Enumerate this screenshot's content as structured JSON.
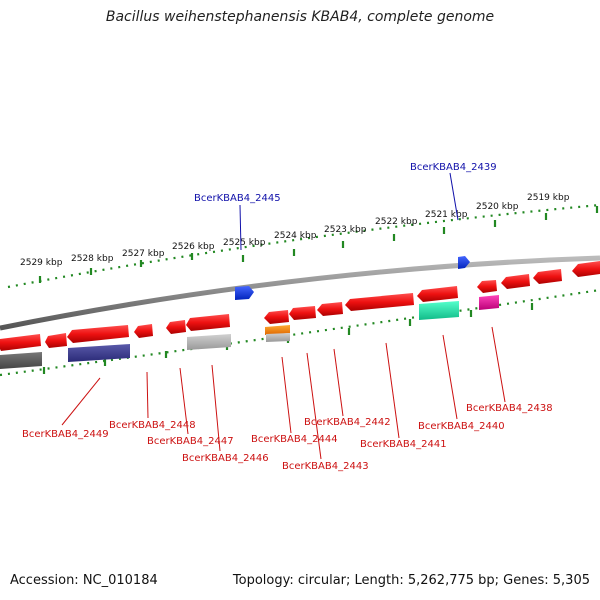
{
  "title": "Bacillus weihenstephanensis KBAB4, complete genome",
  "footer": {
    "accession": "Accession: NC_010184",
    "topology": "Topology: circular; Length: 5,262,775 bp; Genes: 5,305"
  },
  "kbp_labels": [
    "2529 kbp",
    "2528 kbp",
    "2527 kbp",
    "2526 kbp",
    "2525 kbp",
    "2524 kbp",
    "2523 kbp",
    "2522 kbp",
    "2521 kbp",
    "2520 kbp",
    "2519 kbp"
  ],
  "gene_labels": {
    "g2445": "BcerKBAB4_2445",
    "g2439": "BcerKBAB4_2439",
    "g2449": "BcerKBAB4_2449",
    "g2448": "BcerKBAB4_2448",
    "g2447": "BcerKBAB4_2447",
    "g2446": "BcerKBAB4_2446",
    "g2444": "BcerKBAB4_2444",
    "g2443": "BcerKBAB4_2443",
    "g2442": "BcerKBAB4_2442",
    "g2441": "BcerKBAB4_2441",
    "g2440": "BcerKBAB4_2440",
    "g2438": "BcerKBAB4_2438"
  },
  "colors": {
    "backbone": "#888888",
    "cds": "#ee1111",
    "forward_gene": "#1133dd",
    "tick": "#228822",
    "label_red": "#cc1111",
    "label_blue": "#1111aa"
  }
}
